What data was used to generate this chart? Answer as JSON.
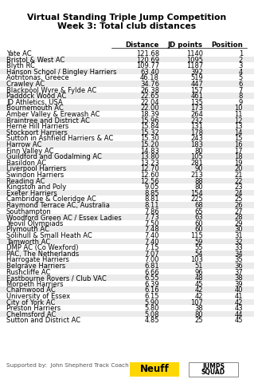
{
  "title_line1": "Virtual Standing Triple Jump Competition",
  "title_line2": "Week 3: Total club distances",
  "rows": [
    [
      "Yate AC",
      "121.68",
      "1140",
      "1"
    ],
    [
      "Bristol & West AC",
      "120.69",
      "1095",
      "2"
    ],
    [
      "Blyth RC",
      "109.77",
      "1187",
      "3"
    ],
    [
      "Hanson School / Bingley Harriers",
      "63.40",
      "392",
      "4"
    ],
    [
      "Aotritonas, Greece",
      "46.18",
      "519",
      "5"
    ],
    [
      "Crawley AC",
      "34.76",
      "447",
      "6"
    ],
    [
      "Blackpool Wyre & Fylde AC",
      "26.38",
      "157",
      "7"
    ],
    [
      "Paddock Wood AC",
      "22.65",
      "461",
      "8"
    ],
    [
      "JD Athletics, USA",
      "22.04",
      "135",
      "9"
    ],
    [
      "Bournemouth AC",
      "22.00",
      "173",
      "10"
    ],
    [
      "Amber Valley & Erewash AC",
      "18.39",
      "264",
      "11"
    ],
    [
      "Braintree and District AC",
      "15.96",
      "232",
      "12"
    ],
    [
      "Herne Hill Harriers",
      "15.84",
      "131",
      "13"
    ],
    [
      "Stockport Harriers",
      "15.32",
      "178",
      "14"
    ],
    [
      "Sutton in Ashfield Harriers & AC",
      "15.30",
      "243",
      "15"
    ],
    [
      "Harrow AC",
      "15.20",
      "183",
      "16"
    ],
    [
      "Finn Valley AC",
      "14.83",
      "80",
      "17"
    ],
    [
      "Guildford and Godalming AC",
      "13.80",
      "105",
      "18"
    ],
    [
      "Basildon AC",
      "13.23",
      "281",
      "19"
    ],
    [
      "Liverpool Harriers",
      "12.70",
      "90",
      "20"
    ],
    [
      "Swindon Harriers",
      "12.60",
      "213",
      "21"
    ],
    [
      "Reading AC",
      "12.56",
      "88",
      "22"
    ],
    [
      "Kingston and Poly",
      "9.05",
      "80",
      "23"
    ],
    [
      "Exeter Harriers",
      "8.85",
      "154",
      "24"
    ],
    [
      "Cambridge & Coleridge AC",
      "8.81",
      "225",
      "25"
    ],
    [
      "Raymond Terrace AC, Australia",
      "8.11",
      "68",
      "26"
    ],
    [
      "Southampton",
      "7.86",
      "65",
      "27"
    ],
    [
      "Woodford Green AC / Essex Ladies",
      "7.73",
      "63",
      "28"
    ],
    [
      "Yeovil Olympiads",
      "7.50",
      "60",
      "29"
    ],
    [
      "Plymouth AC",
      "7.48",
      "60",
      "30"
    ],
    [
      "Solihull & Small Heath AC",
      "7.40",
      "115",
      "31"
    ],
    [
      "Tamworth AC",
      "7.40",
      "59",
      "32"
    ],
    [
      "DMP AC (Co Wexford)",
      "7.15",
      "55",
      "33"
    ],
    [
      "PAC, The Netherlands",
      "7.07",
      "54",
      "34"
    ],
    [
      "Harrogate Harriers",
      "7.00",
      "103",
      "35"
    ],
    [
      "Belgrave Harriers",
      "6.81",
      "51",
      "36"
    ],
    [
      "Rushcliffe AC",
      "6.66",
      "96",
      "37"
    ],
    [
      "Eastbourne Rovers / Club VAC",
      "6.55",
      "48",
      "38"
    ],
    [
      "Morpeth Harriers",
      "6.39",
      "45",
      "39"
    ],
    [
      "Charnwood AC",
      "6.16",
      "42",
      "40"
    ],
    [
      "University of Essex",
      "6.15",
      "42",
      "41"
    ],
    [
      "City of York AC",
      "5.90",
      "107",
      "42"
    ],
    [
      "Preston Harriers",
      "5.80",
      "38",
      "43"
    ],
    [
      "Chelmsford AC",
      "5.08",
      "80",
      "44"
    ],
    [
      "Sutton and District AC",
      "4.85",
      "25",
      "45"
    ]
  ],
  "footer": "Supported by:  John Shepherd Track Coach",
  "bg_color": "#ffffff",
  "title_fontsize": 7.8,
  "header_fontsize": 6.2,
  "table_fontsize": 6.0,
  "footer_fontsize": 5.2,
  "neuff_color": "#FFD700",
  "stripe_color": "#ebebeb"
}
